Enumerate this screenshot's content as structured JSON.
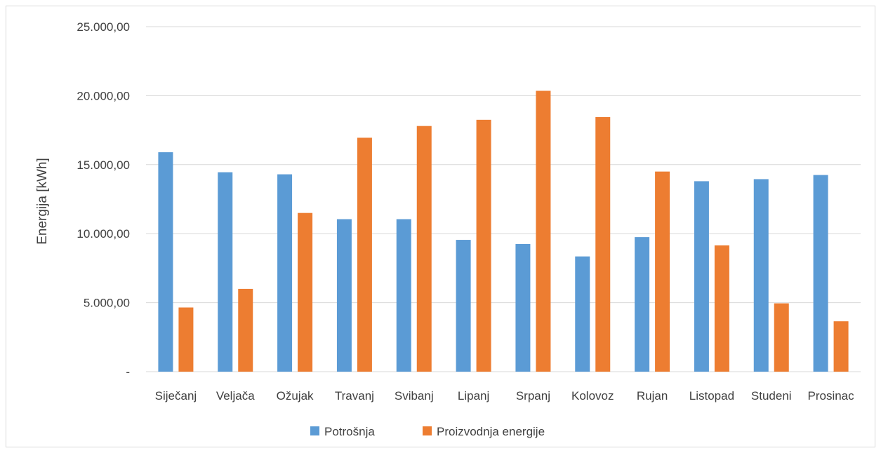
{
  "chart_data": {
    "type": "bar",
    "title": "",
    "xlabel": "",
    "ylabel": "Energija [kWh]",
    "ylim": [
      0,
      25000
    ],
    "yticks": [
      0,
      5000,
      10000,
      15000,
      20000,
      25000
    ],
    "ytick_labels": [
      "-",
      "5.000,00",
      "10.000,00",
      "15.000,00",
      "20.000,00",
      "25.000,00"
    ],
    "categories": [
      "Siječanj",
      "Veljača",
      "Ožujak",
      "Travanj",
      "Svibanj",
      "Lipanj",
      "Srpanj",
      "Kolovoz",
      "Rujan",
      "Listopad",
      "Studeni",
      "Prosinac"
    ],
    "series": [
      {
        "name": "Potrošnja",
        "color": "#5B9BD5",
        "values": [
          15900,
          14450,
          14300,
          11050,
          11050,
          9550,
          9250,
          8350,
          9750,
          13800,
          13950,
          14250
        ]
      },
      {
        "name": "Proizvodnja energije",
        "color": "#ED7D31",
        "values": [
          4650,
          6000,
          11500,
          16950,
          17800,
          18250,
          20350,
          18450,
          14500,
          9150,
          4950,
          3650
        ]
      }
    ],
    "grid": true,
    "legend_position": "bottom"
  }
}
